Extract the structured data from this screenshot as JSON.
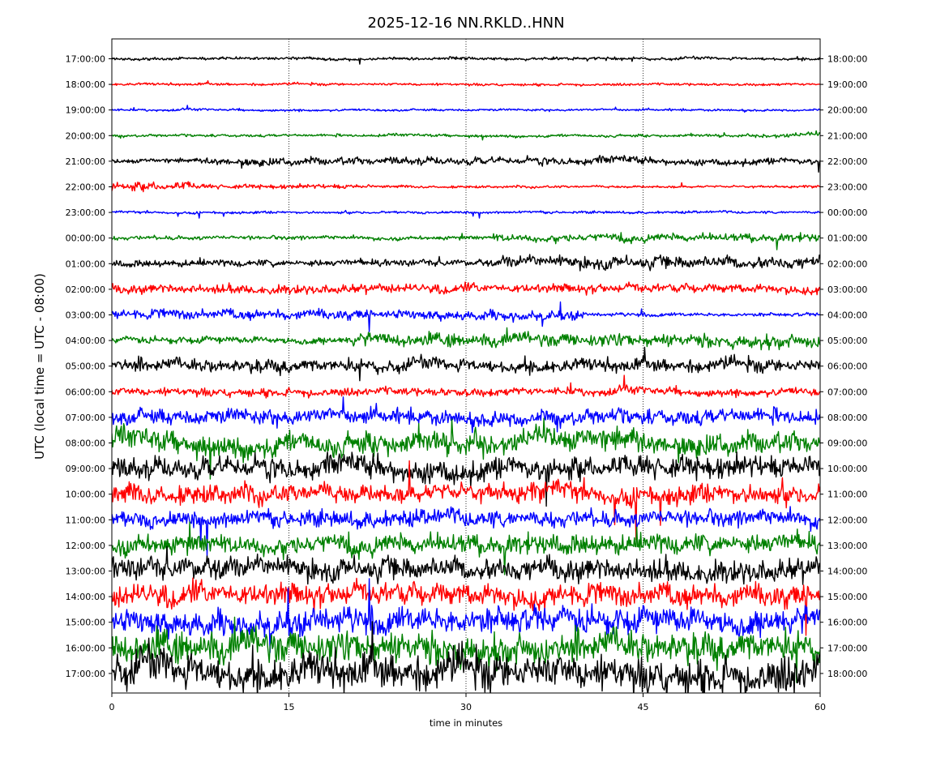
{
  "chart_data": {
    "type": "line",
    "title": "2025-12-16 NN.RKLD..HNN",
    "xlabel": "time in minutes",
    "ylabel": "UTC (local time = UTC - 08:00)",
    "xlim": [
      0,
      60
    ],
    "x_ticks": [
      "0",
      "15",
      "30",
      "45",
      "60"
    ],
    "vertical_gridlines_minutes": [
      15,
      30,
      45
    ],
    "grid": "vertical dotted lines",
    "series_colors": [
      "#000000",
      "#ff0000",
      "#0000ff",
      "#008000"
    ],
    "left_tick_labels": [
      "17:00:00",
      "18:00:00",
      "19:00:00",
      "20:00:00",
      "21:00:00",
      "22:00:00",
      "23:00:00",
      "00:00:00",
      "01:00:00",
      "02:00:00",
      "03:00:00",
      "04:00:00",
      "05:00:00",
      "06:00:00",
      "07:00:00",
      "08:00:00",
      "09:00:00",
      "10:00:00",
      "11:00:00",
      "12:00:00",
      "13:00:00",
      "14:00:00",
      "15:00:00",
      "16:00:00",
      "17:00:00"
    ],
    "right_tick_labels": [
      "18:00:00",
      "19:00:00",
      "20:00:00",
      "21:00:00",
      "22:00:00",
      "23:00:00",
      "00:00:00",
      "01:00:00",
      "02:00:00",
      "03:00:00",
      "04:00:00",
      "05:00:00",
      "06:00:00",
      "07:00:00",
      "08:00:00",
      "09:00:00",
      "10:00:00",
      "11:00:00",
      "12:00:00",
      "13:00:00",
      "14:00:00",
      "15:00:00",
      "16:00:00",
      "17:00:00",
      "18:00:00"
    ],
    "traces": [
      {
        "hour": "17:00:00",
        "amplitude": 0.18,
        "segments": [
          [
            0,
            60,
            1.0
          ]
        ]
      },
      {
        "hour": "18:00:00",
        "amplitude": 0.15,
        "segments": [
          [
            0,
            60,
            1.0
          ]
        ]
      },
      {
        "hour": "19:00:00",
        "amplitude": 0.14,
        "segments": [
          [
            0,
            60,
            1.0
          ]
        ]
      },
      {
        "hour": "20:00:00",
        "amplitude": 0.17,
        "segments": [
          [
            0,
            55,
            1.0
          ],
          [
            55,
            60,
            1.6
          ]
        ]
      },
      {
        "hour": "21:00:00",
        "amplitude": 0.45,
        "segments": [
          [
            0,
            8,
            0.6
          ],
          [
            8,
            45,
            1.1
          ],
          [
            45,
            60,
            0.9
          ]
        ]
      },
      {
        "hour": "22:00:00",
        "amplitude": 0.3,
        "segments": [
          [
            0,
            7,
            1.8
          ],
          [
            7,
            22,
            0.9
          ],
          [
            22,
            60,
            0.5
          ]
        ]
      },
      {
        "hour": "23:00:00",
        "amplitude": 0.15,
        "segments": [
          [
            0,
            60,
            1.0
          ]
        ]
      },
      {
        "hour": "00:00:00",
        "amplitude": 0.3,
        "segments": [
          [
            0,
            32,
            0.8
          ],
          [
            32,
            60,
            1.6
          ]
        ]
      },
      {
        "hour": "01:00:00",
        "amplitude": 0.45,
        "segments": [
          [
            0,
            33,
            0.9
          ],
          [
            33,
            60,
            1.7
          ]
        ]
      },
      {
        "hour": "02:00:00",
        "amplitude": 0.55,
        "segments": [
          [
            0,
            60,
            1.0
          ]
        ]
      },
      {
        "hour": "03:00:00",
        "amplitude": 0.55,
        "segments": [
          [
            0,
            40,
            1.1
          ],
          [
            40,
            60,
            0.4
          ]
        ]
      },
      {
        "hour": "04:00:00",
        "amplitude": 0.6,
        "segments": [
          [
            0,
            20,
            0.7
          ],
          [
            20,
            60,
            1.3
          ]
        ]
      },
      {
        "hour": "05:00:00",
        "amplitude": 0.8,
        "segments": [
          [
            0,
            60,
            1.0
          ]
        ]
      },
      {
        "hour": "06:00:00",
        "amplitude": 0.5,
        "segments": [
          [
            0,
            60,
            1.0
          ]
        ]
      },
      {
        "hour": "07:00:00",
        "amplitude": 1.0,
        "segments": [
          [
            0,
            60,
            1.0
          ]
        ]
      },
      {
        "hour": "08:00:00",
        "amplitude": 1.4,
        "segments": [
          [
            0,
            60,
            1.0
          ]
        ]
      },
      {
        "hour": "09:00:00",
        "amplitude": 1.4,
        "segments": [
          [
            0,
            60,
            1.0
          ]
        ]
      },
      {
        "hour": "10:00:00",
        "amplitude": 1.2,
        "segments": [
          [
            0,
            60,
            1.0
          ]
        ]
      },
      {
        "hour": "11:00:00",
        "amplitude": 1.0,
        "segments": [
          [
            0,
            60,
            1.0
          ]
        ]
      },
      {
        "hour": "12:00:00",
        "amplitude": 1.2,
        "segments": [
          [
            0,
            60,
            1.0
          ]
        ]
      },
      {
        "hour": "13:00:00",
        "amplitude": 1.4,
        "segments": [
          [
            0,
            60,
            1.0
          ]
        ]
      },
      {
        "hour": "14:00:00",
        "amplitude": 1.4,
        "segments": [
          [
            0,
            60,
            1.0
          ]
        ]
      },
      {
        "hour": "15:00:00",
        "amplitude": 1.6,
        "segments": [
          [
            0,
            60,
            1.0
          ]
        ]
      },
      {
        "hour": "16:00:00",
        "amplitude": 1.9,
        "segments": [
          [
            0,
            60,
            1.0
          ]
        ]
      },
      {
        "hour": "17:00:00",
        "amplitude": 2.2,
        "segments": [
          [
            0,
            56.5,
            1.0
          ],
          [
            56.5,
            60,
            1.1
          ]
        ]
      }
    ]
  }
}
